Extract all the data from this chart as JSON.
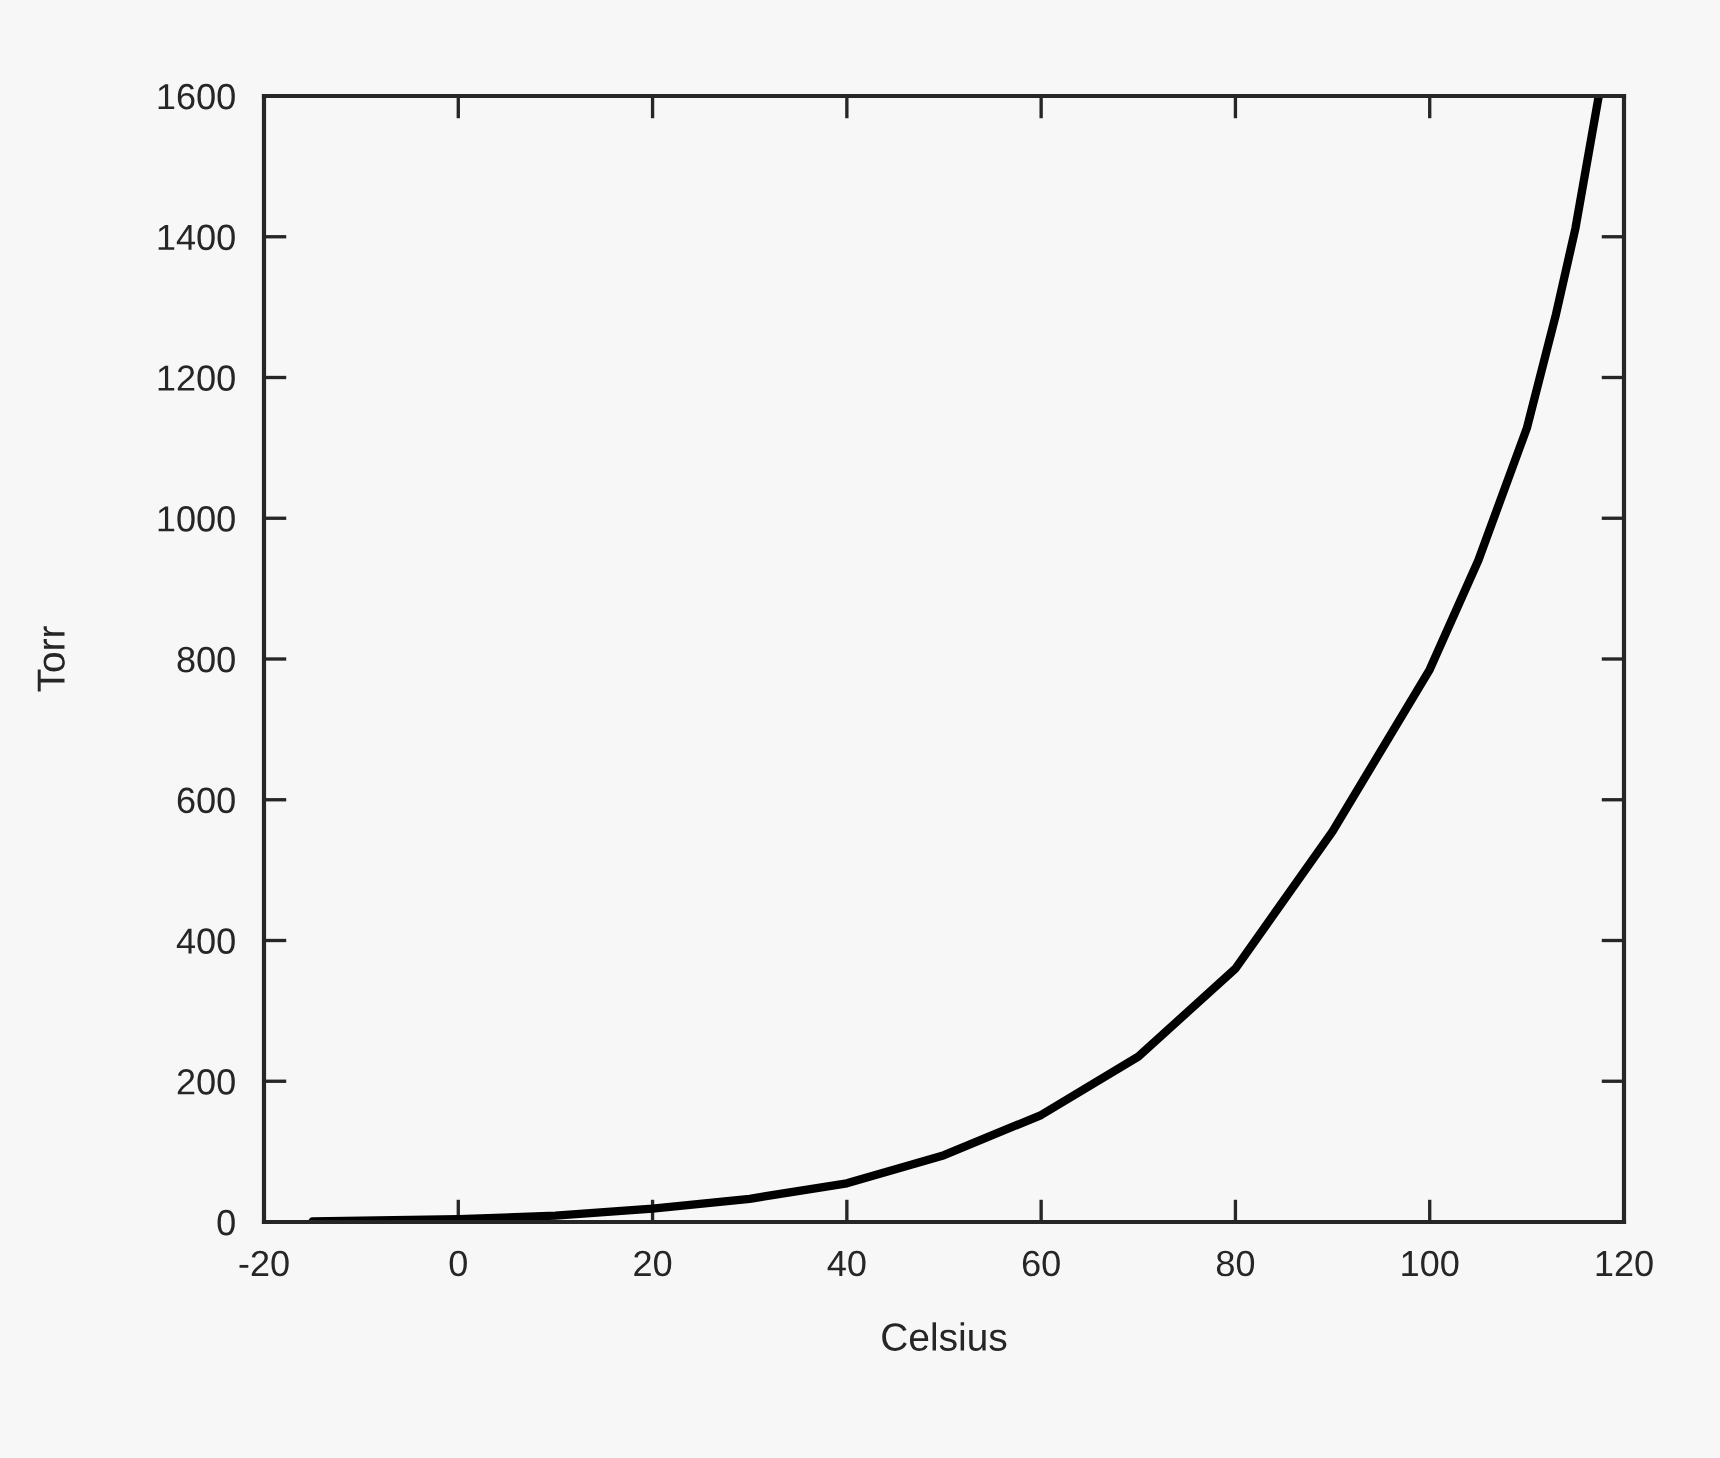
{
  "chart_data": {
    "type": "line",
    "xlabel": "Celsius",
    "ylabel": "Torr",
    "xlim": [
      -20,
      120
    ],
    "xticks": [
      -20,
      0,
      20,
      40,
      60,
      80,
      100,
      120
    ],
    "ylim": [
      0,
      1600
    ],
    "yticks": [
      0,
      200,
      400,
      600,
      800,
      1000,
      1200,
      1400,
      1600
    ],
    "grid": false,
    "marker": "none",
    "line_style": "solid",
    "series": [
      {
        "color": "#000000",
        "x": [
          -15,
          -10,
          0,
          10,
          20,
          30,
          40,
          50,
          60,
          70,
          80,
          90,
          100,
          105,
          110,
          113,
          115,
          117.4
        ],
        "values": [
          1,
          2,
          4,
          9,
          19,
          33,
          55,
          95,
          152,
          235,
          360,
          555,
          785,
          940,
          1128,
          1290,
          1412,
          1600
        ]
      }
    ]
  }
}
